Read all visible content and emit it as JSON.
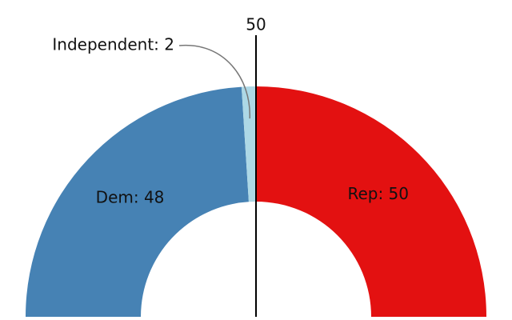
{
  "chart_data": {
    "type": "halfdonut",
    "values": [
      48,
      2,
      50
    ],
    "value_labels": [
      "Dem: 48",
      "Independent: 2",
      "Rep: 50"
    ],
    "colors": [
      "#4682b4",
      "#add8e6",
      "#e31111"
    ],
    "reference_line": {
      "value": 50
    }
  }
}
